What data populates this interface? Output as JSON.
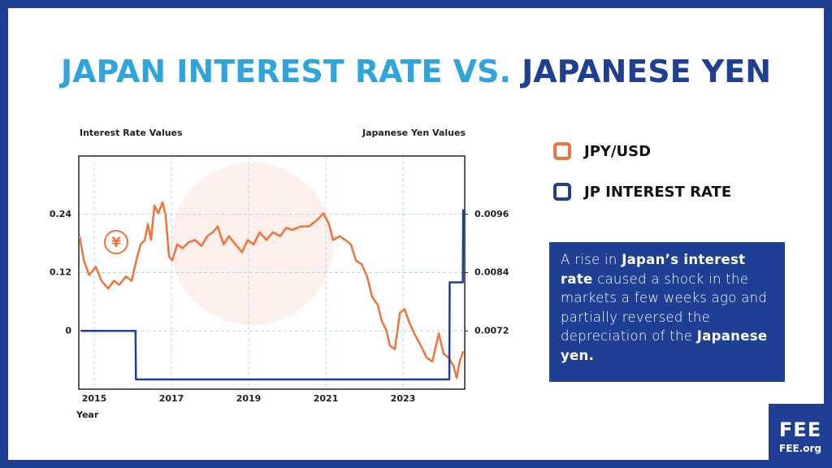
{
  "chart_data": {
    "type": "line",
    "title": [
      "JAPAN INTEREST RATE VS.",
      "JAPANESE YEN"
    ],
    "title_colors": [
      "#2fa4dd",
      "#1f3f94"
    ],
    "y_label": "Interest Rate Values",
    "y2_label": "Japanese Yen Values",
    "x_label": "Year",
    "icon": "¥",
    "xlim": [
      2014.6,
      2024.6
    ],
    "xticks": [
      2015,
      2017,
      2019,
      2021,
      2023
    ],
    "ylim": [
      -0.12,
      0.36
    ],
    "yticks": [
      0,
      0.12,
      0.24
    ],
    "y2lim": [
      0.006,
      0.0108
    ],
    "y2ticks": [
      0.0072,
      0.0084,
      0.0096
    ],
    "grid": true,
    "series": [
      {
        "name": "JPY/USD",
        "color": "#f0743a",
        "axis": "y2",
        "x": [
          2014.62,
          2014.73,
          2014.87,
          2015.04,
          2015.19,
          2015.36,
          2015.51,
          2015.65,
          2015.82,
          2015.97,
          2016.09,
          2016.2,
          2016.31,
          2016.39,
          2016.47,
          2016.56,
          2016.66,
          2016.77,
          2016.85,
          2016.94,
          2017.02,
          2017.15,
          2017.29,
          2017.44,
          2017.61,
          2017.78,
          2017.93,
          2018.07,
          2018.2,
          2018.35,
          2018.49,
          2018.66,
          2018.83,
          2018.98,
          2019.13,
          2019.29,
          2019.46,
          2019.63,
          2019.82,
          2019.97,
          2020.14,
          2020.35,
          2020.56,
          2020.77,
          2020.94,
          2021.08,
          2021.19,
          2021.36,
          2021.51,
          2021.65,
          2021.78,
          2021.93,
          2022.07,
          2022.2,
          2022.35,
          2022.45,
          2022.56,
          2022.66,
          2022.79,
          2022.92,
          2023.04,
          2023.15,
          2023.29,
          2023.46,
          2023.61,
          2023.76,
          2023.93,
          2024.05,
          2024.18,
          2024.31,
          2024.39,
          2024.47,
          2024.56
        ],
        "values": [
          0.00915,
          0.00865,
          0.00835,
          0.00852,
          0.00823,
          0.00807,
          0.00823,
          0.00815,
          0.00832,
          0.00823,
          0.00865,
          0.00898,
          0.00907,
          0.0094,
          0.00907,
          0.00978,
          0.00962,
          0.00985,
          0.00957,
          0.00873,
          0.00865,
          0.00898,
          0.0089,
          0.00902,
          0.00907,
          0.00895,
          0.00915,
          0.00923,
          0.00935,
          0.00898,
          0.00915,
          0.00898,
          0.00882,
          0.00907,
          0.00898,
          0.00923,
          0.00907,
          0.00923,
          0.00915,
          0.00932,
          0.00928,
          0.00935,
          0.00935,
          0.00948,
          0.00962,
          0.0094,
          0.00907,
          0.00915,
          0.00907,
          0.00898,
          0.00865,
          0.00857,
          0.00832,
          0.0079,
          0.00773,
          0.0074,
          0.00723,
          0.0069,
          0.00682,
          0.00757,
          0.00765,
          0.0074,
          0.00715,
          0.0069,
          0.00665,
          0.00657,
          0.00715,
          0.00673,
          0.00665,
          0.00648,
          0.00623,
          0.00657,
          0.00678
        ]
      },
      {
        "name": "JP INTEREST RATE",
        "color": "#1f3f94",
        "axis": "y",
        "x": [
          2014.65,
          2016.07,
          2016.08,
          2024.2,
          2024.21,
          2024.55,
          2024.56
        ],
        "values": [
          0,
          0,
          -0.1,
          -0.1,
          0.1,
          0.1,
          0.25
        ]
      }
    ],
    "annotation": [
      {
        "text": "A rise in ",
        "bold": false
      },
      {
        "text": "Japan’s interest rate",
        "bold": true
      },
      {
        "text": " caused a shock in the markets a few weeks ago and partially reversed the depreciation of the ",
        "bold": false
      },
      {
        "text": "Japanese yen.",
        "bold": true
      }
    ],
    "logo": {
      "name": "FEE",
      "url": "FEE.org"
    }
  }
}
